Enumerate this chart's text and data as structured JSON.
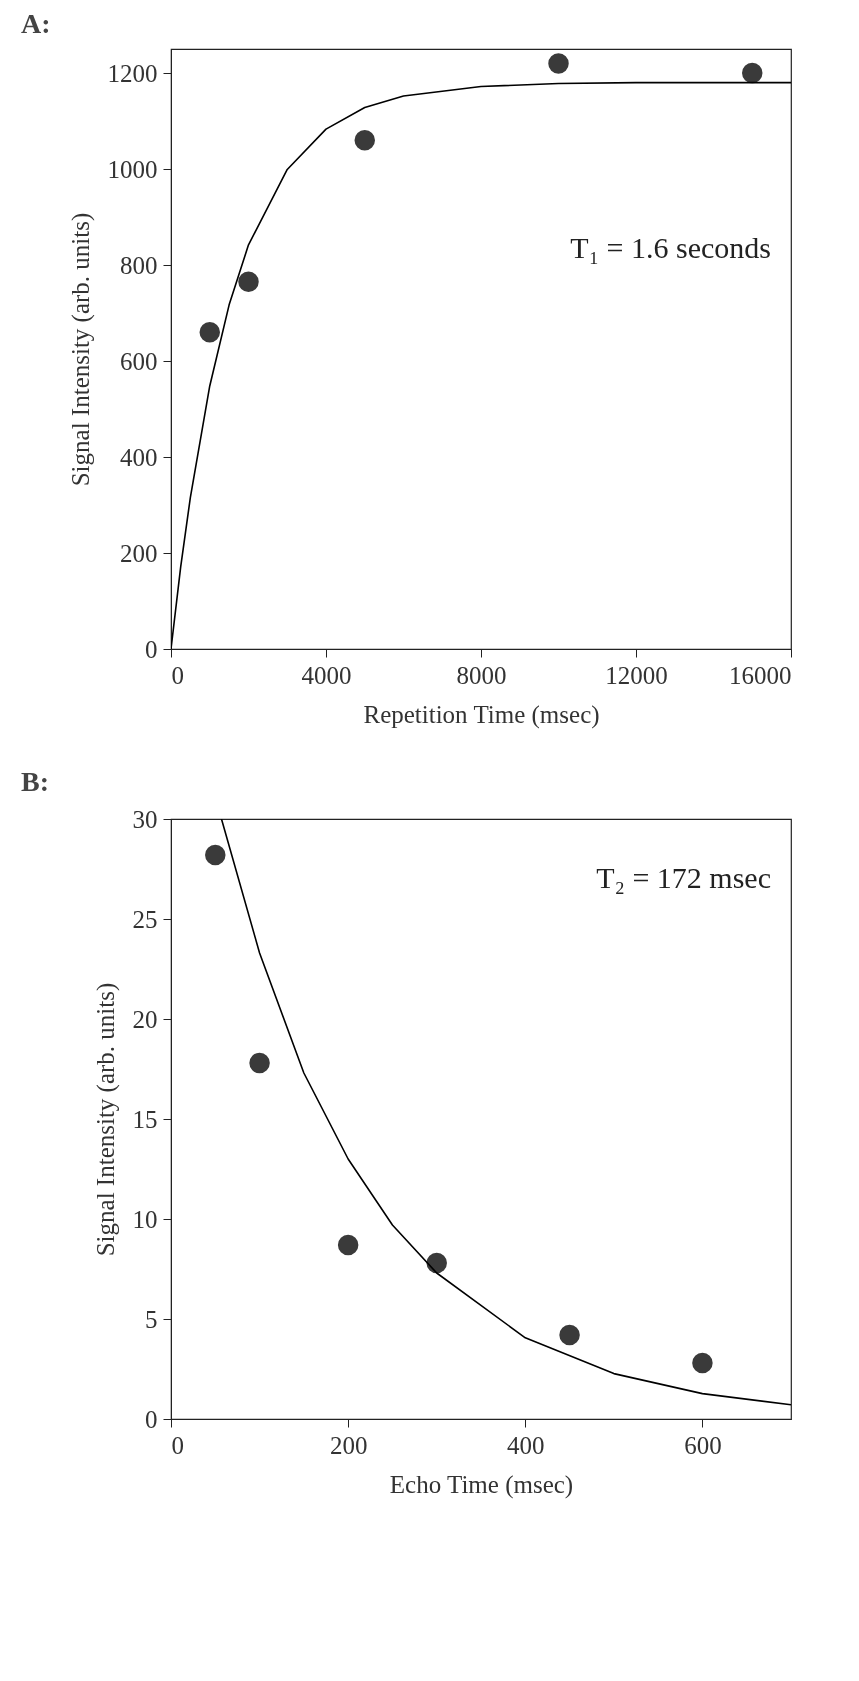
{
  "chart_data": [
    {
      "type": "scatter",
      "title": "A:",
      "xlabel": "Repetition Time (msec)",
      "ylabel": "Signal Intensity (arb. units)",
      "annotations": [
        "T₁ = 1.6 seconds"
      ],
      "xlim": [
        0,
        16000
      ],
      "xticks": [
        0,
        4000,
        8000,
        12000,
        16000
      ],
      "ylim": [
        0,
        1250
      ],
      "yticks": [
        0,
        200,
        400,
        600,
        800,
        1000,
        1200
      ],
      "grid": false,
      "marker": "circle",
      "series": [
        {
          "color": "#3a3a3a",
          "x": [
            1000,
            2000,
            5000,
            10000,
            15000
          ],
          "values": [
            660,
            765,
            1060,
            1220,
            1200
          ]
        },
        {
          "type": "line",
          "marker": "none",
          "color": "#000000",
          "line_style": "solid",
          "x": [
            0,
            250,
            500,
            1000,
            1500,
            2000,
            3000,
            4000,
            5000,
            6000,
            8000,
            10000,
            12000,
            16000
          ],
          "values": [
            0,
            171,
            316,
            548,
            717,
            842,
            999,
            1083,
            1128,
            1152,
            1172,
            1178,
            1180,
            1180
          ]
        }
      ]
    },
    {
      "type": "scatter",
      "title": "B:",
      "xlabel": "Echo Time (msec)",
      "ylabel": "Signal Intensity (arb. units)",
      "annotations": [
        "T₂ = 172 msec"
      ],
      "xlim": [
        0,
        700
      ],
      "xticks": [
        0,
        200,
        400,
        600
      ],
      "ylim": [
        0,
        30
      ],
      "yticks": [
        0,
        5,
        10,
        15,
        20,
        25,
        30
      ],
      "grid": false,
      "marker": "circle",
      "series": [
        {
          "color": "#3a3a3a",
          "x": [
            50,
            100,
            200,
            300,
            450,
            600
          ],
          "values": [
            28.2,
            17.8,
            8.7,
            7.8,
            4.2,
            2.8
          ]
        },
        {
          "type": "line",
          "marker": "none",
          "color": "#000000",
          "line_style": "solid",
          "x": [
            57,
            100,
            150,
            200,
            250,
            300,
            400,
            500,
            600,
            700
          ],
          "values": [
            30,
            23.3,
            17.3,
            13.0,
            9.7,
            7.3,
            4.06,
            2.27,
            1.27,
            0.71
          ]
        }
      ]
    }
  ]
}
